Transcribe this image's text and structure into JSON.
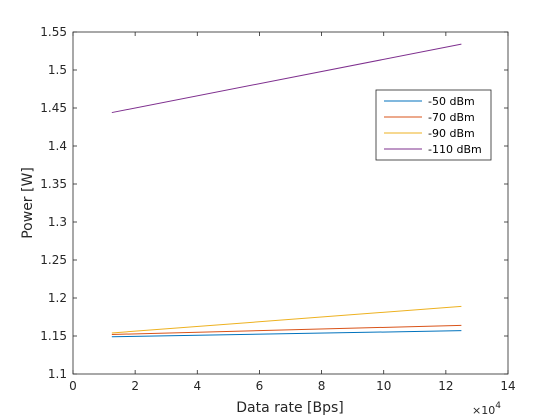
{
  "chart_data": {
    "type": "line",
    "title": "",
    "xlabel": "Data rate [Bps]",
    "ylabel": "Power [W]",
    "x_multiplier_label": "×10",
    "x_multiplier_exponent": "4",
    "xlim": [
      0,
      14
    ],
    "ylim": [
      1.1,
      1.55
    ],
    "xticks": [
      "0",
      "2",
      "4",
      "6",
      "8",
      "10",
      "12",
      "14"
    ],
    "yticks": [
      "1.1",
      "1.15",
      "1.2",
      "1.25",
      "1.3",
      "1.35",
      "1.4",
      "1.45",
      "1.5",
      "1.55"
    ],
    "grid": false,
    "legend_position": "top-right",
    "series": [
      {
        "name": "-50 dBm",
        "color": "#0072BD",
        "x": [
          1.25,
          12.5
        ],
        "y": [
          1.149,
          1.157
        ]
      },
      {
        "name": "-70 dBm",
        "color": "#D95319",
        "x": [
          1.25,
          12.5
        ],
        "y": [
          1.152,
          1.164
        ]
      },
      {
        "name": "-90 dBm",
        "color": "#EDB120",
        "x": [
          1.25,
          12.5
        ],
        "y": [
          1.154,
          1.189
        ]
      },
      {
        "name": "-110 dBm",
        "color": "#7E2F8E",
        "x": [
          1.25,
          12.5
        ],
        "y": [
          1.444,
          1.534
        ]
      }
    ]
  }
}
